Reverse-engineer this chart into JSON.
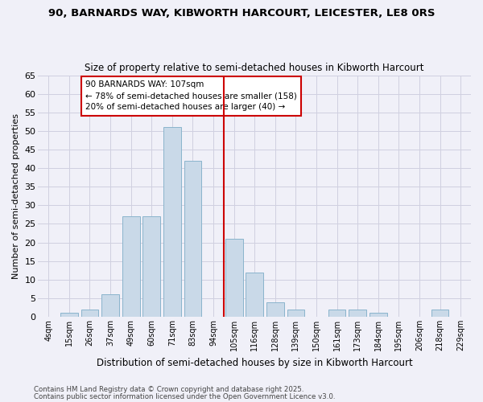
{
  "title": "90, BARNARDS WAY, KIBWORTH HARCOURT, LEICESTER, LE8 0RS",
  "subtitle": "Size of property relative to semi-detached houses in Kibworth Harcourt",
  "xlabel": "Distribution of semi-detached houses by size in Kibworth Harcourt",
  "ylabel": "Number of semi-detached properties",
  "bar_labels": [
    "4sqm",
    "15sqm",
    "26sqm",
    "37sqm",
    "49sqm",
    "60sqm",
    "71sqm",
    "83sqm",
    "94sqm",
    "105sqm",
    "116sqm",
    "128sqm",
    "139sqm",
    "150sqm",
    "161sqm",
    "173sqm",
    "184sqm",
    "195sqm",
    "206sqm",
    "218sqm",
    "229sqm"
  ],
  "bar_heights": [
    0,
    1,
    2,
    6,
    27,
    27,
    51,
    42,
    0,
    21,
    12,
    4,
    2,
    0,
    2,
    2,
    1,
    0,
    0,
    2,
    0
  ],
  "bar_color": "#c9d9e8",
  "bar_edge_color": "#8ab4cc",
  "vline_color": "#cc0000",
  "vline_x_index": 9,
  "annotation_title": "90 BARNARDS WAY: 107sqm",
  "annotation_line1": "← 78% of semi-detached houses are smaller (158)",
  "annotation_line2": "20% of semi-detached houses are larger (40) →",
  "annotation_box_color": "#cc0000",
  "ylim": [
    0,
    65
  ],
  "yticks": [
    0,
    5,
    10,
    15,
    20,
    25,
    30,
    35,
    40,
    45,
    50,
    55,
    60,
    65
  ],
  "bg_color": "#f0f0f8",
  "grid_color": "#d0d0e0",
  "footnote1": "Contains HM Land Registry data © Crown copyright and database right 2025.",
  "footnote2": "Contains public sector information licensed under the Open Government Licence v3.0."
}
